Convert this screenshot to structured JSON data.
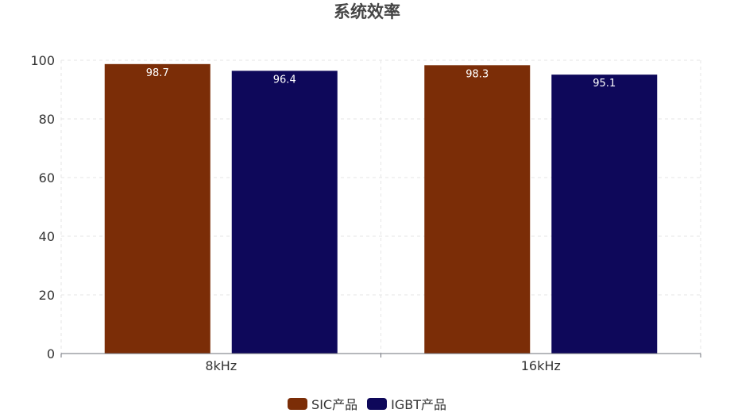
{
  "chart_data": {
    "type": "bar",
    "title": "系统效率",
    "categories": [
      "8kHz",
      "16kHz"
    ],
    "series": [
      {
        "name": "SIC产品",
        "values": [
          98.7,
          98.3
        ],
        "color": "#7b2d07"
      },
      {
        "name": "IGBT产品",
        "values": [
          96.4,
          95.1
        ],
        "color": "#0e085a"
      }
    ],
    "ylim": [
      0,
      100
    ],
    "yticks": [
      0,
      20,
      40,
      60,
      80,
      100
    ],
    "grid": true,
    "legend_position": "bottom-center"
  }
}
